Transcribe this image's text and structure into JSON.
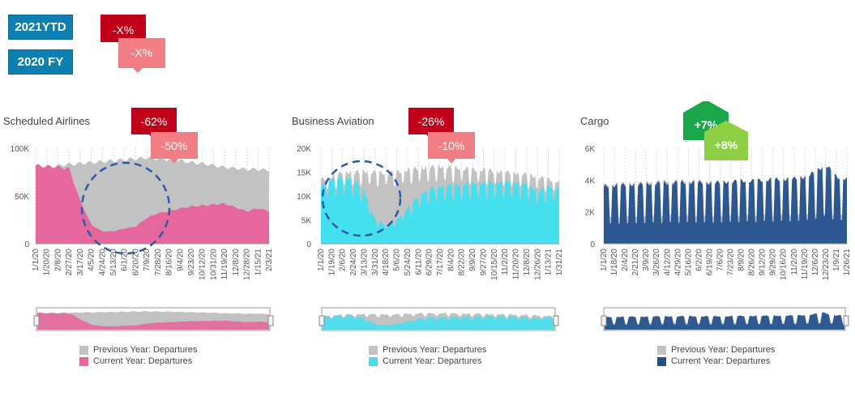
{
  "controls": {
    "ytd_label": "2021YTD",
    "fy_label": "2020 FY",
    "legend_key_dark": "-X%",
    "legend_key_light": "-X%"
  },
  "colors": {
    "button": "#0d7fb0",
    "badge_dark_red": "#c0001a",
    "badge_light_red": "#f07e84",
    "badge_dark_green": "#1aa84a",
    "badge_light_green": "#8fcf45",
    "previous_year": "#c2c2c2",
    "airlines": "#e6679d",
    "business": "#45e0f0",
    "cargo": "#1f4e8c",
    "circle": "#2a5aa8"
  },
  "chart_data": [
    {
      "type": "area",
      "title": "Scheduled Airlines",
      "badges": {
        "ytd": "-62%",
        "fy": "-50%"
      },
      "yticks": [
        "100K",
        "50K",
        "0"
      ],
      "ylim": [
        0,
        100000
      ],
      "xticks": [
        "1/1/20",
        "1/20/20",
        "2/8/20",
        "2/27/20",
        "3/17/20",
        "4/5/20",
        "4/24/20",
        "5/13/20",
        "6/1/20",
        "6/20/20",
        "7/9/20",
        "7/28/20",
        "8/16/20",
        "9/4/20",
        "9/23/20",
        "10/12/20",
        "10/31/20",
        "11/19/20",
        "12/8/20",
        "12/28/20",
        "1/15/21",
        "2/3/21"
      ],
      "series": [
        {
          "name": "Previous Year: Departures",
          "values": [
            80000,
            80000,
            82000,
            83000,
            84000,
            85000,
            86000,
            87000,
            88000,
            89000,
            90000,
            89000,
            88000,
            87000,
            85000,
            84000,
            82000,
            80000,
            79000,
            78000,
            78000,
            77000
          ]
        },
        {
          "name": "Current Year: Departures",
          "values": [
            82000,
            81000,
            80000,
            79000,
            45000,
            20000,
            13000,
            13000,
            16000,
            18000,
            27000,
            32000,
            34000,
            37000,
            39000,
            40000,
            41000,
            42000,
            38000,
            34000,
            37000,
            34000
          ]
        }
      ],
      "legend": [
        "Previous Year: Departures",
        "Current Year: Departures"
      ]
    },
    {
      "type": "area",
      "title": "Business Aviation",
      "badges": {
        "ytd": "-26%",
        "fy": "-10%"
      },
      "yticks": [
        "20K",
        "15K",
        "10K",
        "5K",
        "0"
      ],
      "ylim": [
        0,
        20000
      ],
      "xticks": [
        "1/1/20",
        "1/19/20",
        "2/6/20",
        "2/24/20",
        "3/13/20",
        "3/31/20",
        "4/18/20",
        "5/6/20",
        "5/24/20",
        "6/11/20",
        "6/29/20",
        "7/17/20",
        "8/4/20",
        "8/22/20",
        "9/9/20",
        "9/27/20",
        "10/15/20",
        "11/2/20",
        "11/20/20",
        "12/8/20",
        "12/26/20",
        "1/13/21",
        "1/31/21"
      ],
      "series": [
        {
          "name": "Previous Year: Departures",
          "values": [
            13500,
            14000,
            15000,
            15000,
            15200,
            15000,
            14800,
            15000,
            15500,
            15800,
            16000,
            16200,
            16000,
            15800,
            15600,
            15500,
            15200,
            15000,
            14800,
            14500,
            14000,
            13500,
            13000
          ]
        },
        {
          "name": "Current Year: Departures",
          "values": [
            12000,
            13500,
            14000,
            13500,
            11000,
            5000,
            4000,
            5000,
            7500,
            10000,
            11500,
            12000,
            12300,
            12500,
            12600,
            12800,
            12900,
            13000,
            12800,
            12500,
            11000,
            12000,
            11800
          ]
        }
      ],
      "legend": [
        "Previous Year: Departures",
        "Current Year: Departures"
      ]
    },
    {
      "type": "area",
      "title": "Cargo",
      "badges": {
        "ytd": "+7%",
        "fy": "+8%"
      },
      "yticks": [
        "6K",
        "4K",
        "2K",
        "0"
      ],
      "ylim": [
        0,
        6000
      ],
      "xticks": [
        "1/1/20",
        "1/18/20",
        "2/4/20",
        "2/21/20",
        "3/9/20",
        "3/26/20",
        "4/12/20",
        "4/29/20",
        "5/16/20",
        "6/2/20",
        "6/19/20",
        "7/6/20",
        "7/23/20",
        "8/9/20",
        "8/26/20",
        "9/12/20",
        "9/29/20",
        "10/16/20",
        "11/2/20",
        "11/19/20",
        "12/6/20",
        "12/23/20",
        "1/9/21",
        "1/26/21"
      ],
      "series": [
        {
          "name": "Previous Year: Departures",
          "values": [
            3700,
            3750,
            3800,
            3800,
            3850,
            3900,
            3950,
            3950,
            3950,
            3950,
            3900,
            3900,
            3900,
            3950,
            3950,
            4000,
            4000,
            4000,
            4050,
            4100,
            4150,
            4200,
            4000,
            3900
          ]
        },
        {
          "name": "Current Year: Departures",
          "values": [
            3600,
            3650,
            3700,
            3700,
            3750,
            3800,
            3800,
            3850,
            3850,
            3850,
            3800,
            3850,
            3900,
            3950,
            3950,
            4000,
            4050,
            4050,
            4100,
            4200,
            4500,
            5000,
            4200,
            4100
          ]
        }
      ],
      "legend": [
        "Previous Year: Departures",
        "Current Year: Departures"
      ]
    }
  ]
}
